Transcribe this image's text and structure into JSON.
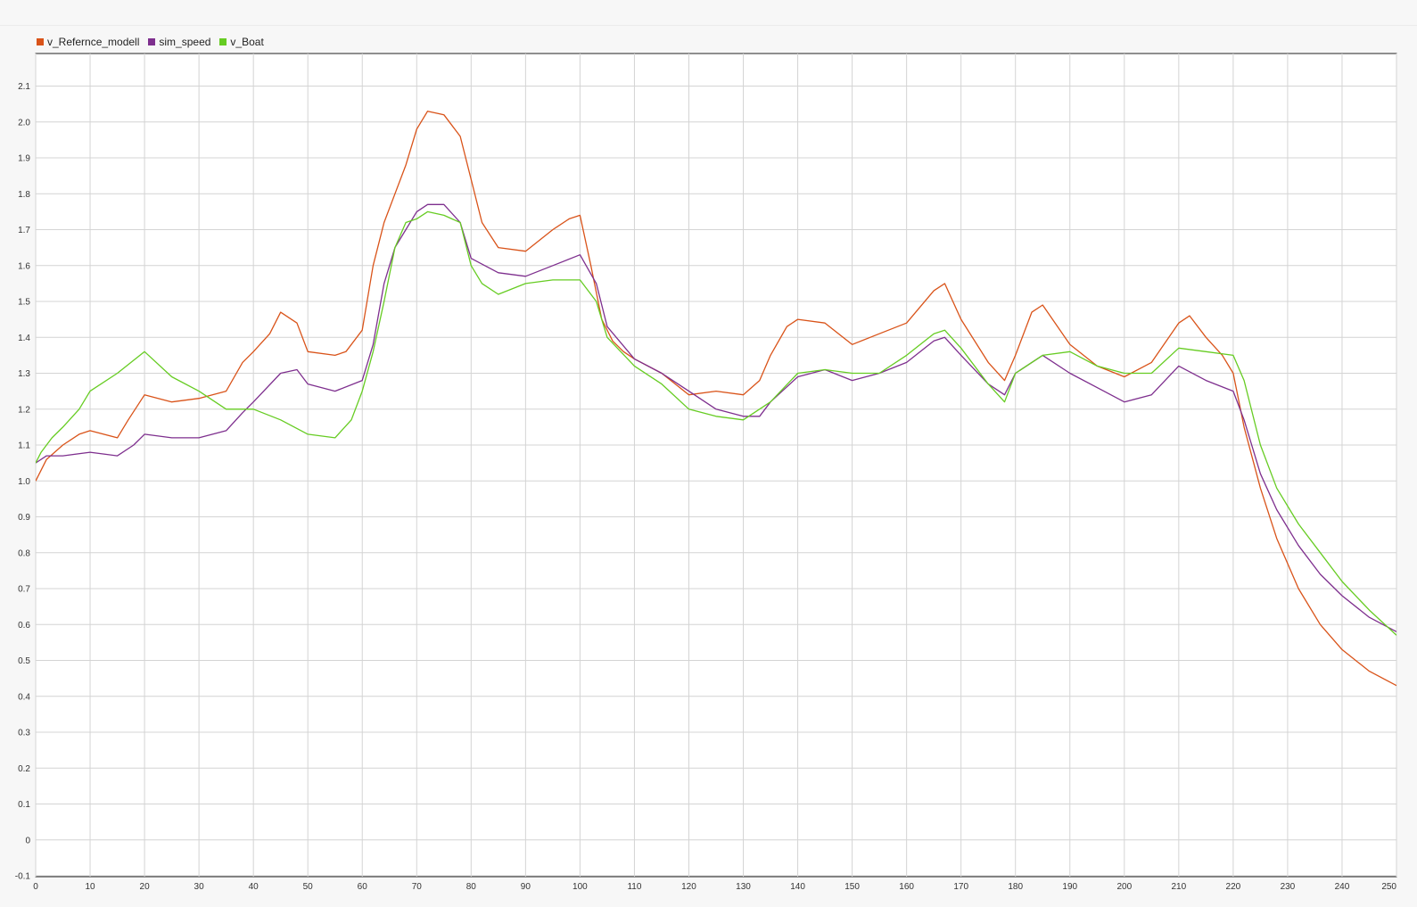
{
  "chart_data": {
    "type": "line",
    "title": "",
    "xlabel": "",
    "ylabel": "",
    "xlim": [
      0,
      250
    ],
    "ylim": [
      -0.1,
      2.2
    ],
    "xticks": [
      0,
      10,
      20,
      30,
      40,
      50,
      60,
      70,
      80,
      90,
      100,
      110,
      120,
      130,
      140,
      150,
      160,
      170,
      180,
      190,
      200,
      210,
      220,
      230,
      240,
      250
    ],
    "yticks": [
      -0.1,
      0,
      0.1,
      0.2,
      0.3,
      0.4,
      0.5,
      0.6,
      0.7,
      0.8,
      0.9,
      1.0,
      1.1,
      1.2,
      1.3,
      1.4,
      1.5,
      1.6,
      1.7,
      1.8,
      1.9,
      2.0,
      2.1
    ],
    "ytick_labels": [
      "-0.1",
      "0",
      "0.1",
      "0.2",
      "0.3",
      "0.4",
      "0.5",
      "0.6",
      "0.7",
      "0.8",
      "0.9",
      "1.0",
      "1.1",
      "1.2",
      "1.3",
      "1.4",
      "1.5",
      "1.6",
      "1.7",
      "1.8",
      "1.9",
      "2.0",
      "2.1"
    ],
    "grid": true,
    "legend_position": "top-left",
    "series": [
      {
        "name": "v_Refernce_modell",
        "color": "#d95319",
        "x": [
          0,
          2,
          5,
          8,
          10,
          15,
          17,
          20,
          25,
          30,
          35,
          38,
          40,
          43,
          45,
          48,
          50,
          55,
          57,
          60,
          62,
          64,
          66,
          68,
          70,
          72,
          75,
          78,
          80,
          82,
          85,
          90,
          95,
          98,
          100,
          102,
          104,
          106,
          108,
          110,
          115,
          120,
          125,
          130,
          133,
          135,
          138,
          140,
          145,
          150,
          155,
          160,
          165,
          167,
          170,
          175,
          178,
          180,
          183,
          185,
          190,
          195,
          200,
          205,
          210,
          212,
          215,
          218,
          220,
          222,
          225,
          228,
          232,
          236,
          240,
          245,
          250
        ],
        "y": [
          1.0,
          1.06,
          1.1,
          1.13,
          1.14,
          1.12,
          1.17,
          1.24,
          1.22,
          1.23,
          1.25,
          1.33,
          1.36,
          1.41,
          1.47,
          1.44,
          1.36,
          1.35,
          1.36,
          1.42,
          1.6,
          1.72,
          1.8,
          1.88,
          1.98,
          2.03,
          2.02,
          1.96,
          1.84,
          1.72,
          1.65,
          1.64,
          1.7,
          1.73,
          1.74,
          1.6,
          1.45,
          1.39,
          1.36,
          1.34,
          1.3,
          1.24,
          1.25,
          1.24,
          1.28,
          1.35,
          1.43,
          1.45,
          1.44,
          1.38,
          1.41,
          1.44,
          1.53,
          1.55,
          1.45,
          1.33,
          1.28,
          1.35,
          1.47,
          1.49,
          1.38,
          1.32,
          1.29,
          1.33,
          1.44,
          1.46,
          1.4,
          1.35,
          1.3,
          1.15,
          0.98,
          0.84,
          0.7,
          0.6,
          0.53,
          0.47,
          0.43
        ]
      },
      {
        "name": "sim_speed",
        "color": "#7e2f8e",
        "x": [
          0,
          2,
          5,
          10,
          15,
          18,
          20,
          25,
          30,
          35,
          38,
          40,
          45,
          48,
          50,
          55,
          60,
          62,
          64,
          66,
          68,
          70,
          72,
          75,
          78,
          80,
          85,
          90,
          95,
          100,
          103,
          105,
          110,
          115,
          120,
          125,
          130,
          133,
          135,
          140,
          145,
          150,
          155,
          160,
          165,
          167,
          170,
          175,
          178,
          180,
          185,
          190,
          195,
          200,
          205,
          210,
          215,
          220,
          222,
          225,
          228,
          232,
          236,
          240,
          245,
          250
        ],
        "y": [
          1.05,
          1.07,
          1.07,
          1.08,
          1.07,
          1.1,
          1.13,
          1.12,
          1.12,
          1.14,
          1.19,
          1.22,
          1.3,
          1.31,
          1.27,
          1.25,
          1.28,
          1.38,
          1.55,
          1.65,
          1.7,
          1.75,
          1.77,
          1.77,
          1.72,
          1.62,
          1.58,
          1.57,
          1.6,
          1.63,
          1.55,
          1.43,
          1.34,
          1.3,
          1.25,
          1.2,
          1.18,
          1.18,
          1.22,
          1.29,
          1.31,
          1.28,
          1.3,
          1.33,
          1.39,
          1.4,
          1.35,
          1.27,
          1.24,
          1.3,
          1.35,
          1.3,
          1.26,
          1.22,
          1.24,
          1.32,
          1.28,
          1.25,
          1.17,
          1.02,
          0.92,
          0.82,
          0.74,
          0.68,
          0.62,
          0.58
        ]
      },
      {
        "name": "v_Boat",
        "color": "#66cc22",
        "x": [
          0,
          1,
          3,
          5,
          8,
          10,
          15,
          20,
          25,
          30,
          35,
          40,
          45,
          50,
          55,
          58,
          60,
          62,
          64,
          66,
          68,
          70,
          72,
          75,
          78,
          80,
          82,
          85,
          90,
          95,
          100,
          103,
          105,
          110,
          115,
          120,
          125,
          130,
          135,
          140,
          145,
          150,
          155,
          160,
          165,
          167,
          170,
          175,
          178,
          180,
          185,
          190,
          195,
          200,
          205,
          210,
          215,
          220,
          222,
          225,
          228,
          232,
          236,
          240,
          245,
          250
        ],
        "y": [
          1.05,
          1.08,
          1.12,
          1.15,
          1.2,
          1.25,
          1.3,
          1.36,
          1.29,
          1.25,
          1.2,
          1.2,
          1.17,
          1.13,
          1.12,
          1.17,
          1.25,
          1.36,
          1.5,
          1.65,
          1.72,
          1.73,
          1.75,
          1.74,
          1.72,
          1.6,
          1.55,
          1.52,
          1.55,
          1.56,
          1.56,
          1.5,
          1.4,
          1.32,
          1.27,
          1.2,
          1.18,
          1.17,
          1.22,
          1.3,
          1.31,
          1.3,
          1.3,
          1.35,
          1.41,
          1.42,
          1.37,
          1.27,
          1.22,
          1.3,
          1.35,
          1.36,
          1.32,
          1.3,
          1.3,
          1.37,
          1.36,
          1.35,
          1.28,
          1.1,
          0.98,
          0.88,
          0.8,
          0.72,
          0.64,
          0.57
        ]
      }
    ]
  }
}
